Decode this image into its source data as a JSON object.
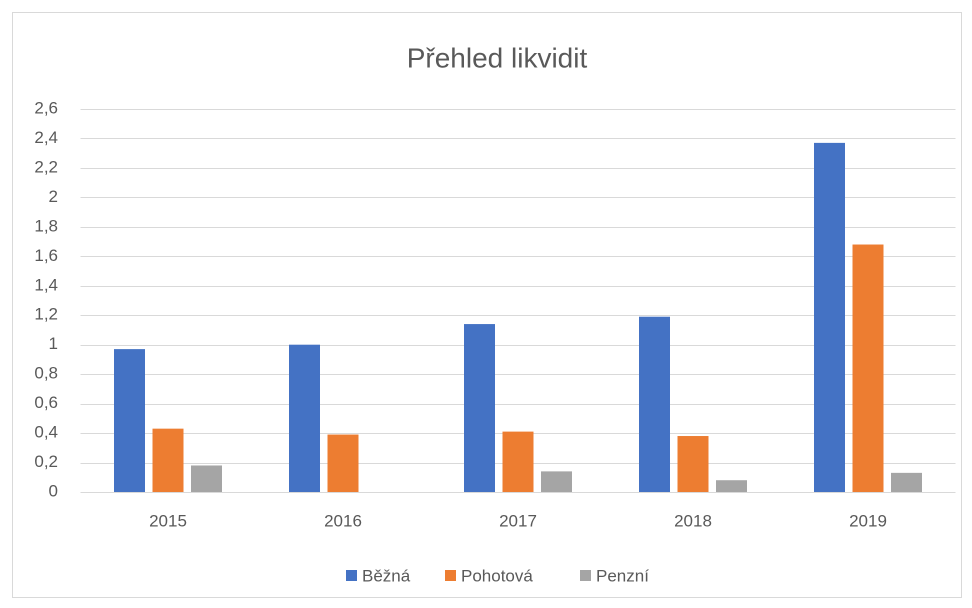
{
  "chart_data": {
    "type": "bar",
    "title": "Přehled likvidit",
    "categories": [
      "2015",
      "2016",
      "2017",
      "2018",
      "2019"
    ],
    "series": [
      {
        "name": "Běžná",
        "color": "#4472c4",
        "values": [
          0.97,
          1.0,
          1.14,
          1.19,
          2.37
        ]
      },
      {
        "name": "Pohotová",
        "color": "#ed7d31",
        "values": [
          0.43,
          0.39,
          0.41,
          0.38,
          1.68
        ]
      },
      {
        "name": "Penzní",
        "color": "#a5a5a5",
        "values": [
          0.18,
          0,
          0.14,
          0.08,
          0.13
        ]
      }
    ],
    "ylim": [
      0,
      2.6
    ],
    "yticks": [
      0,
      {
        "value": 0.2,
        "label": "0,2"
      },
      {
        "value": 0.4,
        "label": "0,4"
      },
      {
        "value": 0.6,
        "label": "0,6"
      },
      {
        "value": 0.8,
        "label": "0,8"
      },
      1,
      {
        "value": 1.2,
        "label": "1,2"
      },
      {
        "value": 1.4,
        "label": "1,4"
      },
      {
        "value": 1.6,
        "label": "1,6"
      },
      {
        "value": 1.8,
        "label": "1,8"
      },
      2,
      {
        "value": 2.2,
        "label": "2,2"
      },
      {
        "value": 2.4,
        "label": "2,4"
      },
      {
        "value": 2.6,
        "label": "2,6"
      }
    ],
    "grid": true,
    "legend": "bottom"
  }
}
